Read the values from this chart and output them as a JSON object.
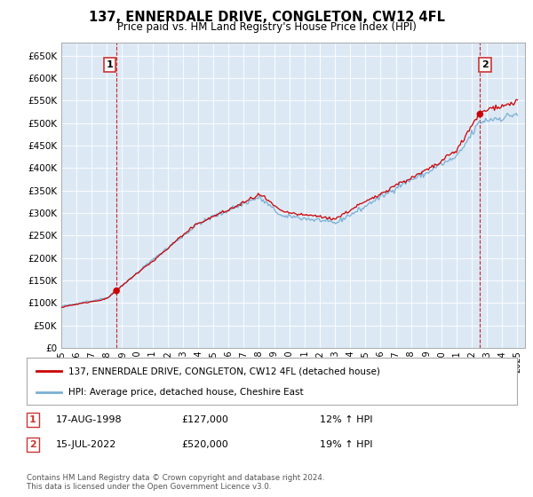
{
  "title": "137, ENNERDALE DRIVE, CONGLETON, CW12 4FL",
  "subtitle": "Price paid vs. HM Land Registry's House Price Index (HPI)",
  "property_label": "137, ENNERDALE DRIVE, CONGLETON, CW12 4FL (detached house)",
  "hpi_label": "HPI: Average price, detached house, Cheshire East",
  "annotation1_date": "17-AUG-1998",
  "annotation1_price": "£127,000",
  "annotation1_hpi": "12% ↑ HPI",
  "annotation2_date": "15-JUL-2022",
  "annotation2_price": "£520,000",
  "annotation2_hpi": "19% ↑ HPI",
  "footer": "Contains HM Land Registry data © Crown copyright and database right 2024.\nThis data is licensed under the Open Government Licence v3.0.",
  "property_color": "#cc0000",
  "hpi_color": "#7aafd4",
  "plot_bg_color": "#dce9f5",
  "background_color": "#ffffff",
  "grid_color": "#ffffff",
  "ylim": [
    0,
    680000
  ],
  "xlim_left": 1995.0,
  "xlim_right": 2025.5,
  "sale1_year": 1998.63,
  "sale1_price": 127000,
  "sale2_year": 2022.54,
  "sale2_price": 520000
}
